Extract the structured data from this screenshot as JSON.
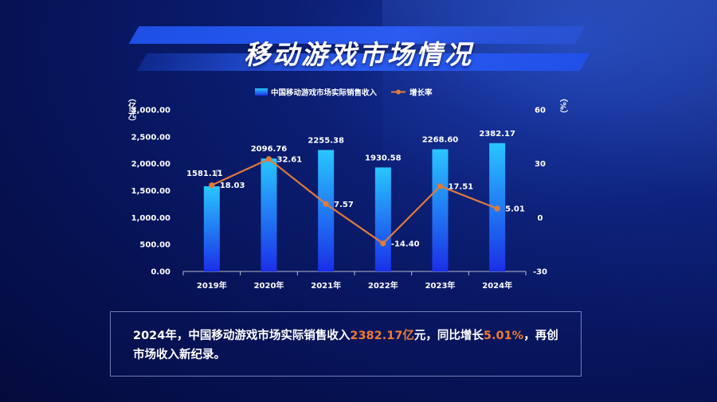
{
  "title": "移动游戏市场情况",
  "legend": {
    "bar_label": "中国移动游戏市场实际销售收入",
    "line_label": "增长率"
  },
  "axes": {
    "left_unit": "（亿元）",
    "right_unit": "（%）"
  },
  "note": {
    "part1": "2024年，中国移动游戏市场实际销售收入",
    "highlight1": "2382.17亿",
    "part2": "元，同比增长",
    "highlight2": "5.01%",
    "part3": "，再创市场收入新纪录。"
  },
  "colors": {
    "bar_top": "#29c6ff",
    "bar_bottom": "#1a2fe8",
    "line": "#e07a3a",
    "highlight": "#f07a30"
  },
  "chart_data": {
    "type": "bar",
    "categories": [
      "2019年",
      "2020年",
      "2021年",
      "2022年",
      "2023年",
      "2024年"
    ],
    "series": [
      {
        "name": "中国移动游戏市场实际销售收入",
        "type": "bar",
        "axis": "left",
        "values": [
          1581.11,
          2096.76,
          2255.38,
          1930.58,
          2268.6,
          2382.17
        ],
        "labels": [
          "1581.11",
          "2096.76",
          "2255.38",
          "1930.58",
          "2268.60",
          "2382.17"
        ]
      },
      {
        "name": "增长率",
        "type": "line",
        "axis": "right",
        "values": [
          18.03,
          32.61,
          7.57,
          -14.4,
          17.51,
          5.01
        ],
        "labels": [
          "18.03",
          "32.61",
          "7.57",
          "-14.40",
          "17.51",
          "5.01"
        ]
      }
    ],
    "left_axis": {
      "ylim": [
        0,
        3000
      ],
      "ticks": [
        "0.00",
        "500.00",
        "1,000.00",
        "1,500.00",
        "2,000.00",
        "2,500.00",
        "3,000.00"
      ]
    },
    "right_axis": {
      "ylim": [
        -30,
        60
      ],
      "ticks": [
        "-30",
        "0",
        "30",
        "60"
      ]
    },
    "legend_position": "top-center",
    "grid": false
  }
}
